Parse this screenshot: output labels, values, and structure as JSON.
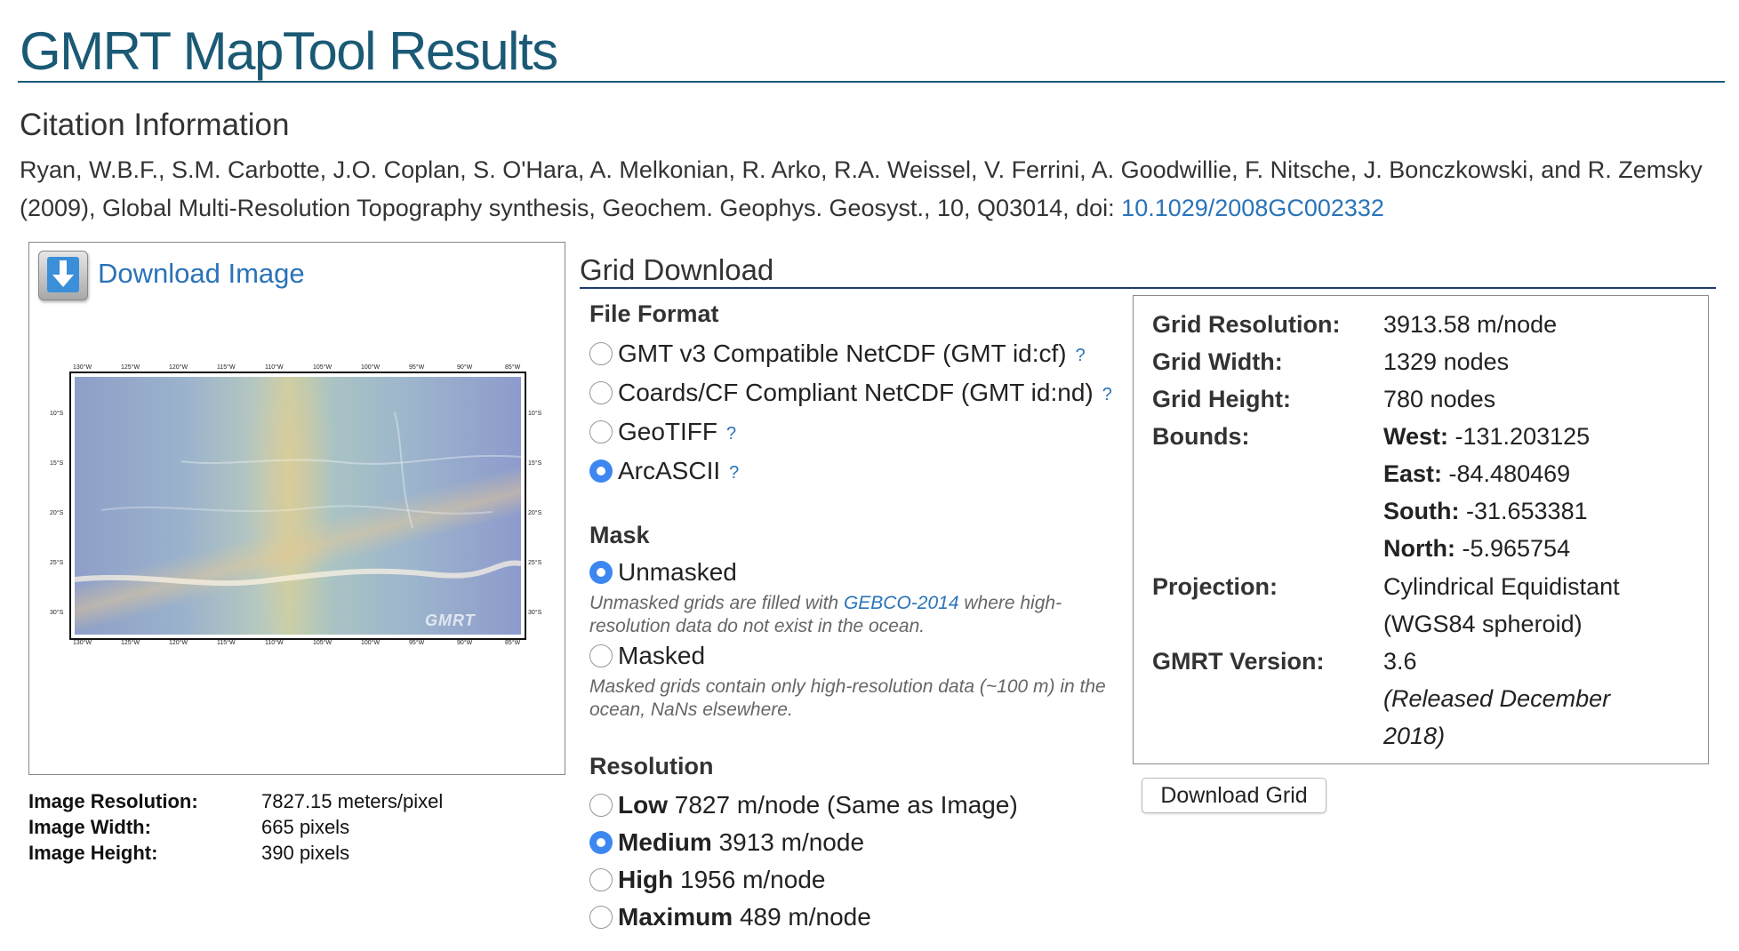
{
  "page_title": "GMRT MapTool Results",
  "citation": {
    "heading": "Citation Information",
    "text": "Ryan, W.B.F., S.M. Carbotte, J.O. Coplan, S. O'Hara, A. Melkonian, R. Arko, R.A. Weissel, V. Ferrini, A. Goodwillie, F. Nitsche, J. Bonczkowski, and R. Zemsky (2009), Global Multi-Resolution Topography synthesis, Geochem. Geophys. Geosyst., 10, Q03014, doi: ",
    "doi_link": "10.1029/2008GC002332"
  },
  "image_panel": {
    "download_label": "Download Image",
    "download_icon": "download-arrow-icon",
    "map_ticks_top": [
      "130°W",
      "125°W",
      "120°W",
      "115°W",
      "110°W",
      "105°W",
      "100°W",
      "95°W",
      "90°W",
      "85°W"
    ],
    "map_ticks_left": [
      "10°S",
      "15°S",
      "20°S",
      "25°S",
      "30°S"
    ],
    "watermark": "GMRT",
    "stats": [
      {
        "label": "Image Resolution:",
        "value": "7827.15 meters/pixel"
      },
      {
        "label": "Image Width:",
        "value": "665 pixels"
      },
      {
        "label": "Image Height:",
        "value": "390 pixels"
      }
    ]
  },
  "grid_download": {
    "heading": "Grid Download",
    "file_format": {
      "heading": "File Format",
      "options": [
        {
          "label": "GMT v3 Compatible NetCDF (GMT id:cf)",
          "help": "?",
          "checked": false
        },
        {
          "label": "Coards/CF Compliant NetCDF (GMT id:nd)",
          "help": "?",
          "checked": false
        },
        {
          "label": "GeoTIFF",
          "help": "?",
          "checked": false
        },
        {
          "label": "ArcASCII",
          "help": "?",
          "checked": true
        }
      ]
    },
    "mask": {
      "heading": "Mask",
      "unmasked": "Unmasked",
      "unmasked_note_pre": "Unmasked grids are filled with ",
      "unmasked_note_link": "GEBCO-2014",
      "unmasked_note_post": " where high-resolution data do not exist in the ocean.",
      "masked": "Masked",
      "masked_note": "Masked grids contain only high-resolution data (~100 m) in the ocean, NaNs elsewhere."
    },
    "resolution": {
      "heading": "Resolution",
      "options": [
        {
          "name": "Low",
          "detail": "7827 m/node (Same as Image)",
          "checked": false
        },
        {
          "name": "Medium",
          "detail": "3913 m/node",
          "checked": true
        },
        {
          "name": "High",
          "detail": "1956 m/node",
          "checked": false
        },
        {
          "name": "Maximum",
          "detail": "489 m/node",
          "checked": false
        }
      ]
    },
    "info": {
      "grid_resolution_label": "Grid Resolution:",
      "grid_resolution": "3913.58 m/node",
      "grid_width_label": "Grid Width:",
      "grid_width": "1329 nodes",
      "grid_height_label": "Grid Height:",
      "grid_height": "780 nodes",
      "bounds_label": "Bounds:",
      "west_label": "West:",
      "west": " -131.203125",
      "east_label": "East:",
      "east": " -84.480469",
      "south_label": "South:",
      "south": " -31.653381",
      "north_label": "North:",
      "north": " -5.965754",
      "projection_label": "Projection:",
      "projection_1": "Cylindrical Equidistant",
      "projection_2": "(WGS84 spheroid)",
      "version_label": "GMRT Version:",
      "version": "3.6",
      "version_note_1": "(Released December",
      "version_note_2": "2018)"
    },
    "download_button": "Download Grid"
  }
}
